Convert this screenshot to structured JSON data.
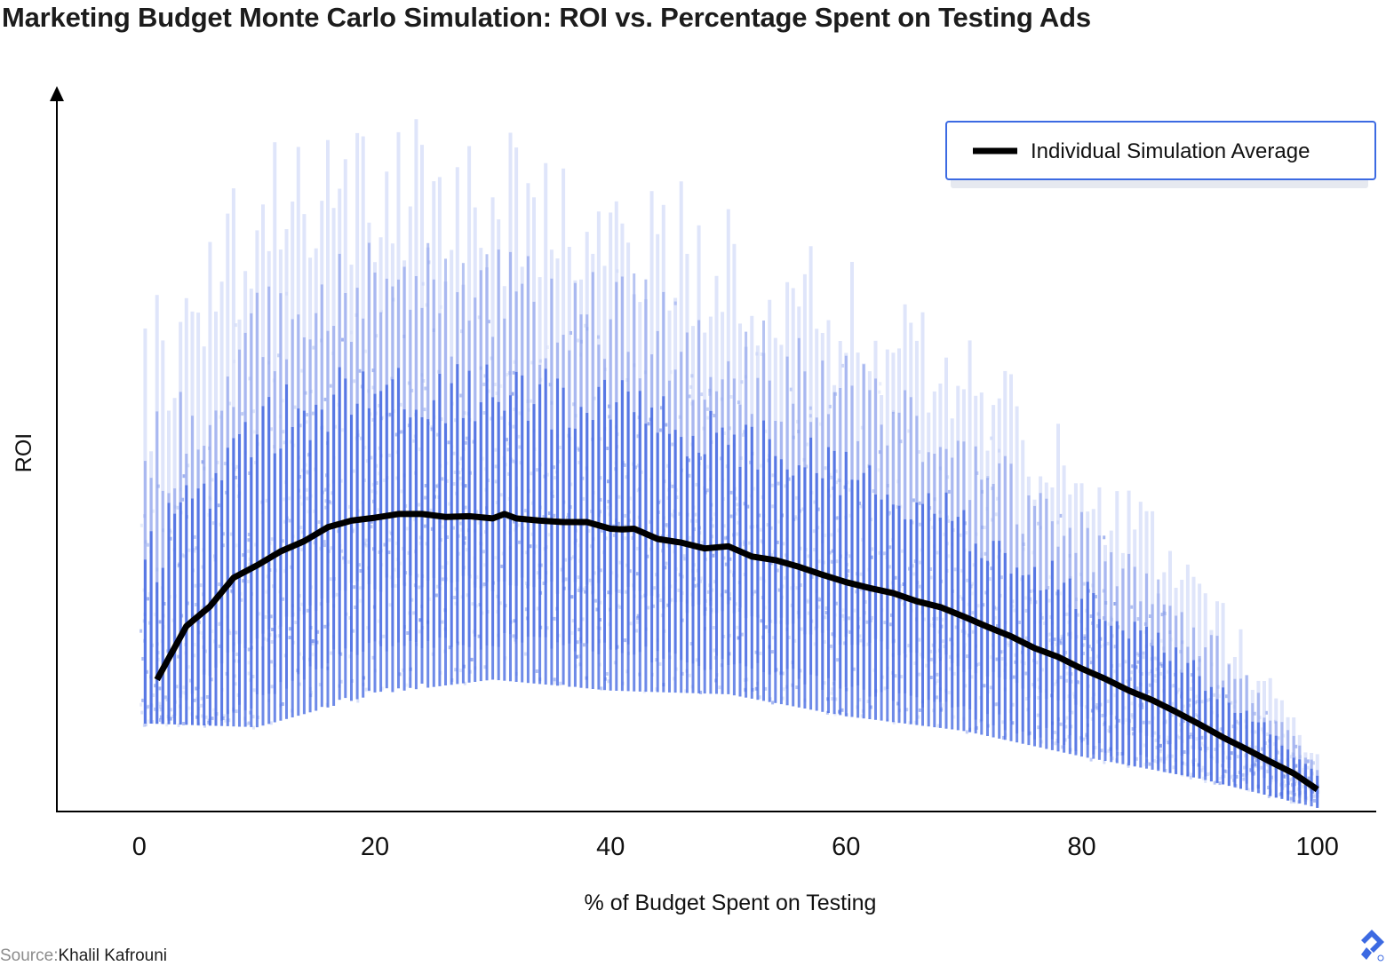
{
  "title": "Marketing Budget Monte Carlo Simulation: ROI vs. Percentage Spent on Testing Ads",
  "source": {
    "label": "Source:",
    "name": "Khalil Kafrouni"
  },
  "logo": {
    "icon": "toptal-logo-icon"
  },
  "colors": {
    "scatter_dense": "#3d63e0",
    "scatter_mid": "#7b93e8",
    "scatter_light": "#c5d0f5",
    "average_line": "#000000",
    "legend_border": "#3c6ae2",
    "axis": "#000000"
  },
  "chart_data": {
    "type": "scatter",
    "title": "Marketing Budget Monte Carlo Simulation: ROI vs. Percentage Spent on Testing Ads",
    "xlabel": "% of Budget Spent on Testing",
    "ylabel": "ROI",
    "xlim": [
      -7,
      105
    ],
    "ylim": [
      -0.3,
      9.6
    ],
    "x_ticks": [
      0,
      20,
      40,
      60,
      80,
      100
    ],
    "x_tick_labels": [
      "0",
      "20",
      "40",
      "60",
      "80",
      "100"
    ],
    "y_ticks": [],
    "grid": false,
    "legend": {
      "position": "top-right",
      "entries": [
        "Individual Simulation Average"
      ]
    },
    "series": [
      {
        "name": "Individual Simulation Average",
        "type": "line",
        "x": [
          1.5,
          4,
          6,
          8,
          10,
          12,
          14,
          16,
          18,
          20,
          22,
          24,
          26,
          28,
          30,
          31,
          32,
          34,
          36,
          38,
          40,
          41,
          42,
          44,
          46,
          48,
          50,
          52,
          54,
          56,
          58,
          60,
          62,
          64,
          66,
          68,
          70,
          72,
          74,
          76,
          78,
          80,
          82,
          84,
          86,
          88,
          90,
          92,
          94,
          96,
          98,
          100
        ],
        "y": [
          1.5,
          2.23,
          2.5,
          2.89,
          3.06,
          3.25,
          3.39,
          3.58,
          3.67,
          3.71,
          3.76,
          3.76,
          3.72,
          3.73,
          3.7,
          3.76,
          3.7,
          3.67,
          3.65,
          3.65,
          3.56,
          3.55,
          3.56,
          3.42,
          3.37,
          3.29,
          3.32,
          3.18,
          3.13,
          3.04,
          2.93,
          2.83,
          2.75,
          2.68,
          2.57,
          2.49,
          2.36,
          2.22,
          2.09,
          1.93,
          1.81,
          1.65,
          1.51,
          1.35,
          1.22,
          1.06,
          0.89,
          0.71,
          0.55,
          0.38,
          0.22,
          0.0
        ]
      },
      {
        "name": "",
        "type": "scatter-envelope",
        "x": [
          1,
          10,
          20,
          30,
          40,
          50,
          60,
          70,
          80,
          90,
          100
        ],
        "y_low": [
          0.9,
          0.85,
          1.3,
          1.5,
          1.35,
          1.3,
          1.0,
          0.8,
          0.45,
          0.15,
          -0.25
        ],
        "y_high": [
          8.9,
          9.5,
          9.6,
          9.5,
          9.2,
          8.6,
          7.8,
          6.8,
          5.2,
          3.5,
          0.5
        ]
      }
    ]
  }
}
